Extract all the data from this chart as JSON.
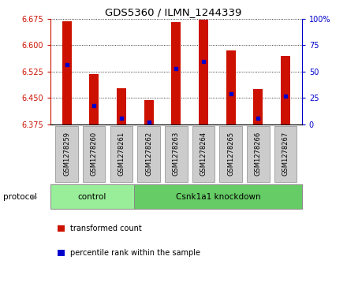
{
  "title": "GDS5360 / ILMN_1244339",
  "samples": [
    "GSM1278259",
    "GSM1278260",
    "GSM1278261",
    "GSM1278262",
    "GSM1278263",
    "GSM1278264",
    "GSM1278265",
    "GSM1278266",
    "GSM1278267"
  ],
  "bar_tops": [
    6.668,
    6.518,
    6.478,
    6.443,
    6.665,
    6.672,
    6.585,
    6.475,
    6.568
  ],
  "bar_bottom": 6.375,
  "blue_positions": [
    6.545,
    6.428,
    6.392,
    6.382,
    6.533,
    6.553,
    6.463,
    6.393,
    6.455
  ],
  "ylim": [
    6.375,
    6.675
  ],
  "yticks_left": [
    6.375,
    6.45,
    6.525,
    6.6,
    6.675
  ],
  "yticks_right": [
    0,
    25,
    50,
    75,
    100
  ],
  "bar_color": "#CC1100",
  "blue_color": "#0000CC",
  "bar_width": 0.35,
  "groups": [
    {
      "label": "control",
      "indices": [
        0,
        1,
        2
      ],
      "color": "#99EE99"
    },
    {
      "label": "Csnk1a1 knockdown",
      "indices": [
        3,
        4,
        5,
        6,
        7,
        8
      ],
      "color": "#66CC66"
    }
  ],
  "protocol_label": "protocol",
  "legend_items": [
    {
      "label": "transformed count",
      "color": "#CC1100"
    },
    {
      "label": "percentile rank within the sample",
      "color": "#0000CC"
    }
  ],
  "left_tick_color": "#CC1100",
  "right_tick_color": "#0000CC",
  "xlabel_bg": "#CCCCCC",
  "xlabel_edge": "#999999"
}
